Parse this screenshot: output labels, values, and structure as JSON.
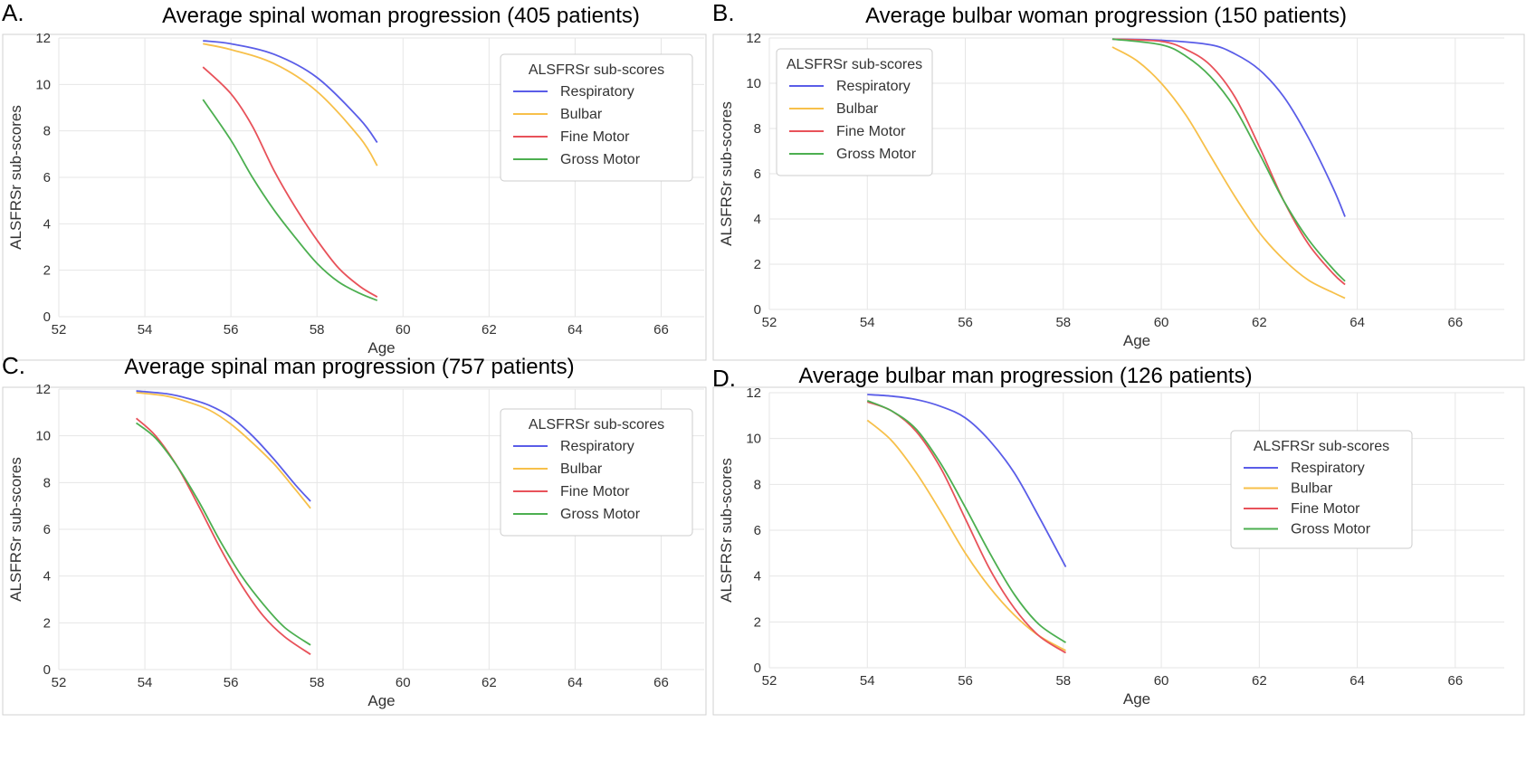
{
  "chart_data": [
    {
      "type": "line",
      "letter": "A.",
      "title": "Average spinal woman progression (405 patients)",
      "xlabel": "Age",
      "ylabel": "ALSFRSr sub-scores",
      "xlim": [
        52,
        67
      ],
      "ylim": [
        0,
        12
      ],
      "xticks": [
        "52",
        "54",
        "56",
        "58",
        "60",
        "62",
        "64",
        "66"
      ],
      "yticks": [
        "0",
        "2",
        "4",
        "6",
        "8",
        "10",
        "12"
      ],
      "grid": true,
      "legend": {
        "title": "ALSFRSr sub-scores",
        "placement": "top-right"
      },
      "series": [
        {
          "name": "Respiratory",
          "color": "#5a5de8",
          "x": [
            55.35,
            56,
            57,
            58,
            59,
            59.4
          ],
          "y": [
            11.88,
            11.75,
            11.3,
            10.3,
            8.5,
            7.5
          ]
        },
        {
          "name": "Bulbar",
          "color": "#f7c04a",
          "x": [
            55.35,
            56,
            57,
            58,
            59,
            59.4
          ],
          "y": [
            11.75,
            11.5,
            10.9,
            9.7,
            7.7,
            6.5
          ]
        },
        {
          "name": "Fine Motor",
          "color": "#e8525a",
          "x": [
            55.35,
            56,
            56.5,
            57,
            57.5,
            58,
            58.5,
            59,
            59.4
          ],
          "y": [
            10.75,
            9.6,
            8.2,
            6.3,
            4.7,
            3.3,
            2.1,
            1.3,
            0.85
          ]
        },
        {
          "name": "Gross Motor",
          "color": "#4caf50",
          "x": [
            55.35,
            56,
            56.5,
            57,
            57.5,
            58,
            58.5,
            59,
            59.4
          ],
          "y": [
            9.35,
            7.6,
            6.0,
            4.6,
            3.4,
            2.3,
            1.5,
            1.0,
            0.7
          ]
        }
      ]
    },
    {
      "type": "line",
      "letter": "B.",
      "title": "Average bulbar woman progression (150 patients)",
      "xlabel": "Age",
      "ylabel": "ALSFRSr sub-scores",
      "xlim": [
        52,
        67
      ],
      "ylim": [
        0,
        12
      ],
      "xticks": [
        "52",
        "54",
        "56",
        "58",
        "60",
        "62",
        "64",
        "66"
      ],
      "yticks": [
        "0",
        "2",
        "4",
        "6",
        "8",
        "10",
        "12"
      ],
      "grid": true,
      "legend": {
        "title": "ALSFRSr sub-scores",
        "placement": "top-left"
      },
      "series": [
        {
          "name": "Respiratory",
          "color": "#5a5de8",
          "x": [
            59,
            60,
            61,
            61.5,
            62,
            62.5,
            63,
            63.5,
            63.75
          ],
          "y": [
            11.95,
            11.9,
            11.7,
            11.3,
            10.6,
            9.4,
            7.6,
            5.4,
            4.1
          ]
        },
        {
          "name": "Bulbar",
          "color": "#f7c04a",
          "x": [
            59,
            59.5,
            60,
            60.5,
            61,
            61.5,
            62,
            62.5,
            63,
            63.5,
            63.75
          ],
          "y": [
            11.6,
            11.0,
            10.0,
            8.6,
            6.8,
            5.0,
            3.4,
            2.2,
            1.3,
            0.75,
            0.5
          ]
        },
        {
          "name": "Fine Motor",
          "color": "#e8525a",
          "x": [
            59,
            60,
            60.5,
            61,
            61.5,
            62,
            62.5,
            63,
            63.5,
            63.75
          ],
          "y": [
            11.95,
            11.85,
            11.5,
            10.8,
            9.4,
            7.2,
            4.8,
            2.9,
            1.6,
            1.1
          ]
        },
        {
          "name": "Gross Motor",
          "color": "#4caf50",
          "x": [
            59,
            60,
            60.5,
            61,
            61.5,
            62,
            62.5,
            63,
            63.5,
            63.75
          ],
          "y": [
            11.95,
            11.7,
            11.2,
            10.3,
            8.9,
            6.9,
            4.8,
            3.1,
            1.8,
            1.25
          ]
        }
      ]
    },
    {
      "type": "line",
      "letter": "C.",
      "title": "Average spinal man progression (757 patients)",
      "xlabel": "Age",
      "ylabel": "ALSFRSr sub-scores",
      "xlim": [
        52,
        67
      ],
      "ylim": [
        0,
        12
      ],
      "xticks": [
        "52",
        "54",
        "56",
        "58",
        "60",
        "62",
        "64",
        "66"
      ],
      "yticks": [
        "0",
        "2",
        "4",
        "6",
        "8",
        "10",
        "12"
      ],
      "grid": true,
      "legend": {
        "title": "ALSFRSr sub-scores",
        "placement": "top-right"
      },
      "series": [
        {
          "name": "Respiratory",
          "color": "#5a5de8",
          "x": [
            53.8,
            54.5,
            55,
            55.5,
            56,
            56.5,
            57,
            57.5,
            57.85
          ],
          "y": [
            11.92,
            11.8,
            11.6,
            11.3,
            10.8,
            10.0,
            9.0,
            7.9,
            7.2
          ]
        },
        {
          "name": "Bulbar",
          "color": "#f7c04a",
          "x": [
            53.8,
            54.5,
            55,
            55.5,
            56,
            56.5,
            57,
            57.5,
            57.85
          ],
          "y": [
            11.85,
            11.7,
            11.45,
            11.1,
            10.5,
            9.7,
            8.8,
            7.7,
            6.9
          ]
        },
        {
          "name": "Fine Motor",
          "color": "#e8525a",
          "x": [
            53.8,
            54.25,
            54.75,
            55.25,
            55.75,
            56.25,
            56.75,
            57.25,
            57.85
          ],
          "y": [
            10.75,
            10.0,
            8.7,
            7.0,
            5.2,
            3.6,
            2.3,
            1.4,
            0.65
          ]
        },
        {
          "name": "Gross Motor",
          "color": "#4caf50",
          "x": [
            53.8,
            54.25,
            54.75,
            55.25,
            55.75,
            56.25,
            56.75,
            57.25,
            57.85
          ],
          "y": [
            10.55,
            9.9,
            8.7,
            7.2,
            5.5,
            4.0,
            2.8,
            1.8,
            1.05
          ]
        }
      ]
    },
    {
      "type": "line",
      "letter": "D.",
      "title": "Average bulbar man progression (126 patients)",
      "xlabel": "Age",
      "ylabel": "ALSFRSr sub-scores",
      "xlim": [
        52,
        67
      ],
      "ylim": [
        0,
        12
      ],
      "xticks": [
        "52",
        "54",
        "56",
        "58",
        "60",
        "62",
        "64",
        "66"
      ],
      "yticks": [
        "0",
        "2",
        "4",
        "6",
        "8",
        "10",
        "12"
      ],
      "grid": true,
      "legend": {
        "title": "ALSFRSr sub-scores",
        "placement": "top-right"
      },
      "series": [
        {
          "name": "Respiratory",
          "color": "#5a5de8",
          "x": [
            54,
            54.5,
            55,
            55.5,
            56,
            56.5,
            57,
            57.5,
            58.05
          ],
          "y": [
            11.92,
            11.85,
            11.7,
            11.4,
            10.9,
            9.9,
            8.5,
            6.6,
            4.4
          ]
        },
        {
          "name": "Bulbar",
          "color": "#f7c04a",
          "x": [
            54,
            54.5,
            55,
            55.5,
            56,
            56.5,
            57,
            57.5,
            58.05
          ],
          "y": [
            10.8,
            9.9,
            8.5,
            6.8,
            5.0,
            3.5,
            2.3,
            1.4,
            0.75
          ]
        },
        {
          "name": "Fine Motor",
          "color": "#e8525a",
          "x": [
            54,
            54.5,
            55,
            55.5,
            56,
            56.5,
            57,
            57.5,
            58.05
          ],
          "y": [
            11.6,
            11.2,
            10.3,
            8.7,
            6.5,
            4.3,
            2.6,
            1.4,
            0.65
          ]
        },
        {
          "name": "Gross Motor",
          "color": "#4caf50",
          "x": [
            54,
            54.5,
            55,
            55.5,
            56,
            56.5,
            57,
            57.5,
            58.05
          ],
          "y": [
            11.65,
            11.2,
            10.4,
            8.9,
            7.0,
            5.0,
            3.2,
            1.9,
            1.1
          ]
        }
      ]
    }
  ]
}
